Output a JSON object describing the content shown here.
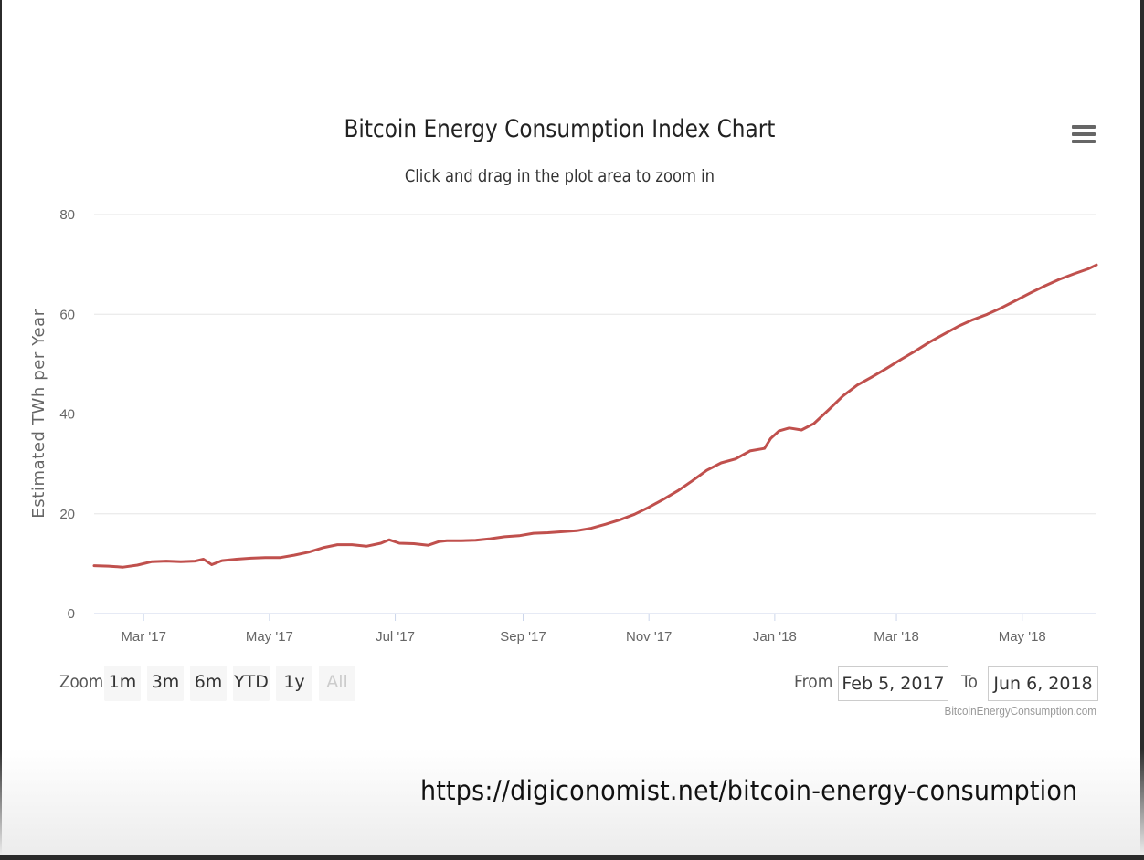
{
  "chart_data": {
    "type": "line",
    "title": "Bitcoin Energy Consumption Index Chart",
    "subtitle": "Click and drag in the plot area to zoom in",
    "ylabel": "Estimated TWh per Year",
    "xlabel": "",
    "ylim": [
      0,
      80
    ],
    "yticks": [
      0,
      20,
      40,
      60,
      80
    ],
    "xticks": [
      "Mar '17",
      "May '17",
      "Jul '17",
      "Sep '17",
      "Nov '17",
      "Jan '18",
      "Mar '18",
      "May '18"
    ],
    "xtick_dates": [
      "2017-03-01",
      "2017-05-01",
      "2017-07-01",
      "2017-09-01",
      "2017-11-01",
      "2018-01-01",
      "2018-03-01",
      "2018-05-01"
    ],
    "xlim": [
      "2017-02-05",
      "2018-06-06"
    ],
    "grid": true,
    "line_color": "#c0504d",
    "series": [
      {
        "points": [
          [
            "2017-02-05",
            9.6
          ],
          [
            "2017-02-12",
            9.5
          ],
          [
            "2017-02-19",
            9.3
          ],
          [
            "2017-02-26",
            9.7
          ],
          [
            "2017-03-05",
            10.4
          ],
          [
            "2017-03-12",
            10.5
          ],
          [
            "2017-03-19",
            10.4
          ],
          [
            "2017-03-26",
            10.5
          ],
          [
            "2017-03-30",
            10.9
          ],
          [
            "2017-04-03",
            9.8
          ],
          [
            "2017-04-08",
            10.6
          ],
          [
            "2017-04-15",
            10.9
          ],
          [
            "2017-04-22",
            11.1
          ],
          [
            "2017-04-29",
            11.2
          ],
          [
            "2017-05-06",
            11.2
          ],
          [
            "2017-05-13",
            11.7
          ],
          [
            "2017-05-20",
            12.3
          ],
          [
            "2017-05-27",
            13.2
          ],
          [
            "2017-06-03",
            13.8
          ],
          [
            "2017-06-10",
            13.8
          ],
          [
            "2017-06-17",
            13.5
          ],
          [
            "2017-06-24",
            14.1
          ],
          [
            "2017-06-28",
            14.8
          ],
          [
            "2017-07-03",
            14.1
          ],
          [
            "2017-07-10",
            14.0
          ],
          [
            "2017-07-17",
            13.7
          ],
          [
            "2017-07-22",
            14.4
          ],
          [
            "2017-07-26",
            14.6
          ],
          [
            "2017-08-02",
            14.6
          ],
          [
            "2017-08-09",
            14.7
          ],
          [
            "2017-08-16",
            15.0
          ],
          [
            "2017-08-23",
            15.4
          ],
          [
            "2017-08-30",
            15.6
          ],
          [
            "2017-09-06",
            16.1
          ],
          [
            "2017-09-13",
            16.2
          ],
          [
            "2017-09-20",
            16.4
          ],
          [
            "2017-09-27",
            16.6
          ],
          [
            "2017-10-04",
            17.1
          ],
          [
            "2017-10-11",
            17.9
          ],
          [
            "2017-10-18",
            18.8
          ],
          [
            "2017-10-25",
            19.9
          ],
          [
            "2017-11-01",
            21.3
          ],
          [
            "2017-11-08",
            22.9
          ],
          [
            "2017-11-15",
            24.6
          ],
          [
            "2017-11-22",
            26.6
          ],
          [
            "2017-11-29",
            28.7
          ],
          [
            "2017-12-06",
            30.2
          ],
          [
            "2017-12-13",
            31.0
          ],
          [
            "2017-12-20",
            32.6
          ],
          [
            "2017-12-27",
            33.1
          ],
          [
            "2017-12-30",
            35.1
          ],
          [
            "2018-01-03",
            36.6
          ],
          [
            "2018-01-08",
            37.2
          ],
          [
            "2018-01-14",
            36.8
          ],
          [
            "2018-01-20",
            38.1
          ],
          [
            "2018-01-27",
            40.8
          ],
          [
            "2018-02-03",
            43.6
          ],
          [
            "2018-02-10",
            45.8
          ],
          [
            "2018-02-17",
            47.4
          ],
          [
            "2018-02-24",
            49.1
          ],
          [
            "2018-03-03",
            50.9
          ],
          [
            "2018-03-10",
            52.6
          ],
          [
            "2018-03-17",
            54.4
          ],
          [
            "2018-03-24",
            56.0
          ],
          [
            "2018-03-31",
            57.6
          ],
          [
            "2018-04-07",
            58.9
          ],
          [
            "2018-04-14",
            60.0
          ],
          [
            "2018-04-21",
            61.3
          ],
          [
            "2018-04-28",
            62.8
          ],
          [
            "2018-05-05",
            64.3
          ],
          [
            "2018-05-12",
            65.7
          ],
          [
            "2018-05-19",
            67.0
          ],
          [
            "2018-05-26",
            68.1
          ],
          [
            "2018-06-02",
            69.1
          ],
          [
            "2018-06-06",
            69.9
          ]
        ]
      }
    ]
  },
  "zoom": {
    "label": "Zoom",
    "buttons": [
      {
        "label": "1m"
      },
      {
        "label": "3m"
      },
      {
        "label": "6m"
      },
      {
        "label": "YTD"
      },
      {
        "label": "1y"
      },
      {
        "label": "All"
      }
    ]
  },
  "range": {
    "from_label": "From",
    "from_value": "Feb 5, 2017",
    "to_label": "To",
    "to_value": "Jun 6, 2018"
  },
  "credits": "BitcoinEnergyConsumption.com",
  "source_url": "https://digiconomist.net/bitcoin-energy-consumption"
}
